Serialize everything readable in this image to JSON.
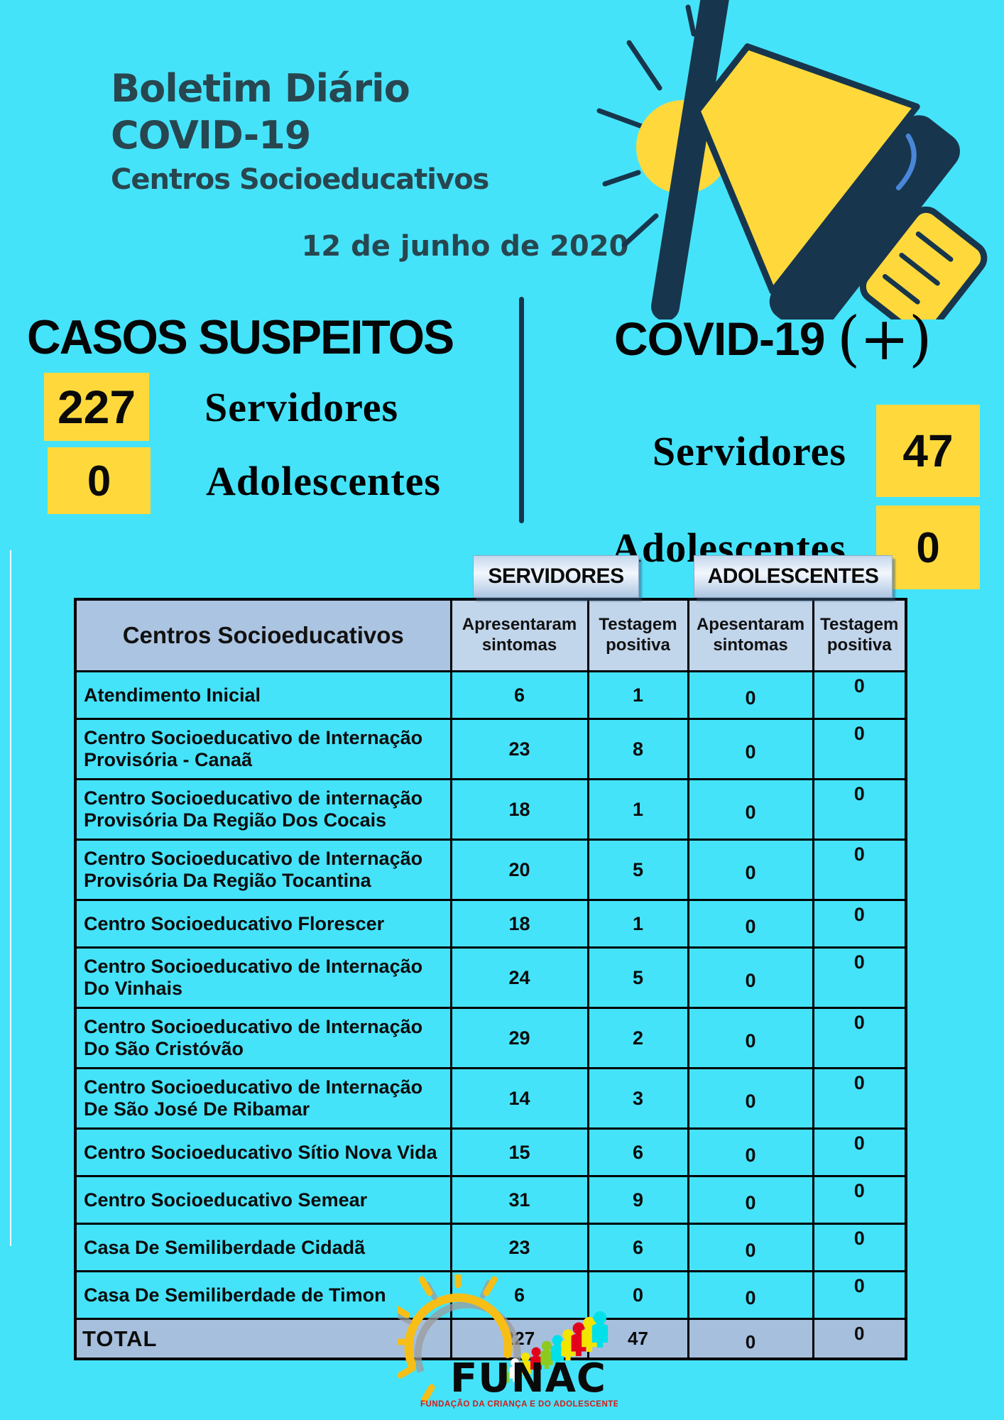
{
  "colors": {
    "background": "#45E3FA",
    "accent_yellow": "#FFD93C",
    "navy": "#17364D",
    "title_teal": "#28464F",
    "table_header_blue": "#ABC4E1",
    "table_subheader_blue": "#C1D5EB",
    "table_total_blue": "#A6BFDD",
    "logo_red": "#D61A1A"
  },
  "header": {
    "title_line1": "Boletim Diário",
    "title_line2": "COVID-19",
    "title_line3": "Centros Socioeducativos",
    "date": "12 de junho de 2020"
  },
  "suspected": {
    "title": "CASOS SUSPEITOS",
    "rows": [
      {
        "value": "227",
        "label": "Servidores"
      },
      {
        "value": "0",
        "label": "Adolescentes"
      }
    ]
  },
  "positive": {
    "title": "COVID-19",
    "suffix": "(+)",
    "rows": [
      {
        "label": "Servidores",
        "value": "47"
      },
      {
        "label": "Adolescentes",
        "value": "0"
      }
    ]
  },
  "table": {
    "group_headers": [
      "SERVIDORES",
      "ADOLESCENTES"
    ],
    "columns": [
      "Centros Socioeducativos",
      "Apresentaram\nsintomas",
      "Testagem\npositiva",
      "Apesentaram\nsintomas",
      "Testagem\npositiva"
    ],
    "rows": [
      {
        "name": "Atendimento Inicial",
        "values": [
          "6",
          "1",
          "0",
          "0"
        ]
      },
      {
        "name": "Centro Socioeducativo de Internação\nProvisória - Canaã",
        "values": [
          "23",
          "8",
          "0",
          "0"
        ]
      },
      {
        "name": "Centro Socioeducativo de internação\nProvisória Da Região Dos Cocais",
        "values": [
          "18",
          "1",
          "0",
          "0"
        ]
      },
      {
        "name": "Centro Socioeducativo de Internação\nProvisória Da Região Tocantina",
        "values": [
          "20",
          "5",
          "0",
          "0"
        ]
      },
      {
        "name": "Centro Socioeducativo Florescer",
        "values": [
          "18",
          "1",
          "0",
          "0"
        ]
      },
      {
        "name": "Centro Socioeducativo de Internação\nDo Vinhais",
        "values": [
          "24",
          "5",
          "0",
          "0"
        ]
      },
      {
        "name": "Centro Socioeducativo de Internação\nDo São Cristóvão",
        "values": [
          "29",
          "2",
          "0",
          "0"
        ]
      },
      {
        "name": "Centro Socioeducativo de Internação\nDe São José De Ribamar",
        "values": [
          "14",
          "3",
          "0",
          "0"
        ]
      },
      {
        "name": "Centro Socioeducativo Sítio Nova Vida",
        "values": [
          "15",
          "6",
          "0",
          "0"
        ]
      },
      {
        "name": "Centro Socioeducativo Semear",
        "values": [
          "31",
          "9",
          "0",
          "0"
        ]
      },
      {
        "name": "Casa De Semiliberdade Cidadã",
        "values": [
          "23",
          "6",
          "0",
          "0"
        ]
      },
      {
        "name": "Casa De Semiliberdade de Timon",
        "values": [
          "6",
          "0",
          "0",
          "0"
        ]
      }
    ],
    "total": {
      "label": "TOTAL",
      "values": [
        "227",
        "47",
        "0",
        "0"
      ]
    }
  },
  "footer": {
    "logo_text": "FUNAC",
    "logo_subtitle": "FUNDAÇÃO DA CRIANÇA E DO ADOLESCENTE"
  }
}
